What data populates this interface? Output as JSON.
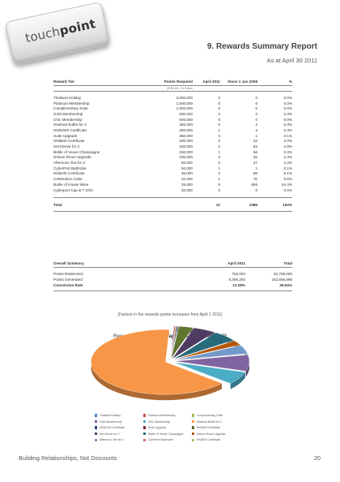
{
  "logo": {
    "text_light": "touch",
    "text_bold": "point"
  },
  "header": {
    "title": "9. Rewards Summary Report",
    "date": "As at April 30 2011"
  },
  "table": {
    "headers": {
      "tier": "Reward Tier",
      "points": "Points Required",
      "april": "April 2011",
      "since": "Since 1 Jan 2008",
      "pct": "%"
    },
    "subheader": "(HK$1 Bill = 10 Points)",
    "rows": [
      {
        "name": "Thailand Holiday",
        "points": "2,000,000",
        "april": "0",
        "since": "0",
        "pct": "0.0%"
      },
      {
        "name": "Platinum Membership",
        "points": "1,500,000",
        "april": "0",
        "since": "0",
        "pct": "0.0%"
      },
      {
        "name": "Complimentary Suite",
        "points": "1,000,000",
        "april": "0",
        "since": "0",
        "pct": "0.0%"
      },
      {
        "name": "Gold Membership",
        "points": "900,000",
        "april": "0",
        "since": "3",
        "pct": "0.3%"
      },
      {
        "name": "Chic Membership",
        "points": "600,000",
        "april": "0",
        "since": "0",
        "pct": "0.0%"
      },
      {
        "name": "Seafood Buffet for 2",
        "points": "350,000",
        "april": "0",
        "since": "3",
        "pct": "0.3%"
      },
      {
        "name": "HK$1000 Certificate",
        "points": "350,000",
        "april": "1",
        "since": "3",
        "pct": "0.3%"
      },
      {
        "name": "Suite Upgrade",
        "points": "350,000",
        "april": "0",
        "since": "1",
        "pct": "0.1%"
      },
      {
        "name": "HK$500 Certificate",
        "points": "200,000",
        "april": "0",
        "since": "33",
        "pct": "3.0%"
      },
      {
        "name": "Set Dinner for 2",
        "points": "180,000",
        "april": "0",
        "since": "53",
        "pct": "4.9%"
      },
      {
        "name": "Bottle of Veuve Champagne",
        "points": "150,000",
        "april": "1",
        "since": "58",
        "pct": "5.3%"
      },
      {
        "name": "Deluxe Room Upgrade",
        "points": "150,000",
        "april": "0",
        "since": "26",
        "pct": "2.4%"
      },
      {
        "name": "Afternoon Tea for 2",
        "points": "60,000",
        "april": "0",
        "since": "47",
        "pct": "4.3%"
      },
      {
        "name": "CyberPort Bathrobe",
        "points": "50,000",
        "april": "1",
        "since": "1",
        "pct": "0.1%"
      },
      {
        "name": "HK$100 Certificate",
        "points": "35,000",
        "april": "0",
        "since": "88",
        "pct": "8.1%"
      },
      {
        "name": "Celebration Cake",
        "points": "32,000",
        "april": "1",
        "since": "70",
        "pct": "6.5%"
      },
      {
        "name": "Bottle of House Wine",
        "points": "25,000",
        "april": "8",
        "since": "699",
        "pct": "64.4%"
      },
      {
        "name": "Cyberport Cap & T Shirt",
        "points": "20,000",
        "april": "0",
        "since": "0",
        "pct": "0.0%"
      }
    ],
    "total": {
      "label": "Total",
      "april": "12",
      "since": "1085",
      "pct": "100%"
    }
  },
  "summary": {
    "headers": {
      "name": "Overall Summary",
      "april": "April 2011",
      "total": "Total"
    },
    "rows": [
      {
        "name": "Points Redeemed",
        "april": "782,000",
        "total": "43,798,000"
      },
      {
        "name": "Points Generated",
        "april": "6,369,250",
        "total": "162,566,590"
      }
    ],
    "rate": {
      "name": "Conversion Rate",
      "april": "12.28%",
      "total": "26.94%"
    }
  },
  "factors_note": "(Factors in the rewards points increases from April 1 2011)",
  "chart_title": {
    "normal": "Rewards Redemption ",
    "bold": "Graphic (Since 1 Jan 2008)"
  },
  "chart_data": {
    "type": "pie",
    "title": "Rewards Redemption Graphic (Since 1 Jan 2008)",
    "series": [
      {
        "name": "Thailand Holiday",
        "value": 0,
        "color": "#4f81bd"
      },
      {
        "name": "Platinum Membership",
        "value": 0,
        "color": "#c0504d"
      },
      {
        "name": "Complimentary Suite",
        "value": 0,
        "color": "#9bbb59"
      },
      {
        "name": "Gold Membership",
        "value": 3,
        "color": "#8064a2"
      },
      {
        "name": "Chic Membership",
        "value": 0,
        "color": "#4bacc6"
      },
      {
        "name": "Seafood Buffet for 2",
        "value": 3,
        "color": "#f79646"
      },
      {
        "name": "HK$1000 Certificate",
        "value": 3,
        "color": "#2c4d75"
      },
      {
        "name": "Suite Upgrade",
        "value": 1,
        "color": "#772c2a"
      },
      {
        "name": "HK$500 Certificate",
        "value": 33,
        "color": "#5f7530"
      },
      {
        "name": "Set Dinner for 2",
        "value": 53,
        "color": "#4d3b62"
      },
      {
        "name": "Bottle of Veuve Champagne",
        "value": 58,
        "color": "#276a7c"
      },
      {
        "name": "Deluxe Room Upgrade",
        "value": 26,
        "color": "#b65708"
      },
      {
        "name": "Afternoon Tea for 2",
        "value": 47,
        "color": "#729aca"
      },
      {
        "name": "CyberPort Bathrobe",
        "value": 1,
        "color": "#cd7371"
      },
      {
        "name": "HK$100 Certificate",
        "value": 88,
        "color": "#8064a2"
      },
      {
        "name": "Celebration Cake",
        "value": 70,
        "color": "#4bacc6"
      },
      {
        "name": "Bottle of House Wine",
        "value": 699,
        "color": "#f79646"
      },
      {
        "name": "Cyberport Cap & T Shirt",
        "value": 0,
        "color": "#c6d9a6"
      }
    ]
  },
  "legend": [
    {
      "label": "Thailand Holiday",
      "color": "#4f81bd"
    },
    {
      "label": "Platinum Membership",
      "color": "#c0504d"
    },
    {
      "label": "Complimentary Suite",
      "color": "#9bbb59"
    },
    {
      "label": "Gold Membership",
      "color": "#8064a2"
    },
    {
      "label": "Chic Membership",
      "color": "#4bacc6"
    },
    {
      "label": "Seafood Buffet for 2",
      "color": "#f79646"
    },
    {
      "label": "HK$1000 Certificate",
      "color": "#2c4d75"
    },
    {
      "label": "Suite Upgrade",
      "color": "#772c2a"
    },
    {
      "label": "HK$500 Certificate",
      "color": "#5f7530"
    },
    {
      "label": "Set Dinner for 2",
      "color": "#4d3b62"
    },
    {
      "label": "Bottle of Veuve Champagne",
      "color": "#276a7c"
    },
    {
      "label": "Deluxe Room Upgrade",
      "color": "#b65708"
    },
    {
      "label": "Afternoon Tea for 2",
      "color": "#729aca"
    },
    {
      "label": "CyberPort Bathrobe",
      "color": "#cd7371"
    },
    {
      "label": "HK$500 Certificate",
      "color": "#a5c26e"
    }
  ],
  "footer": {
    "text": "Building Relationships, Not Discounts",
    "page": "20"
  }
}
